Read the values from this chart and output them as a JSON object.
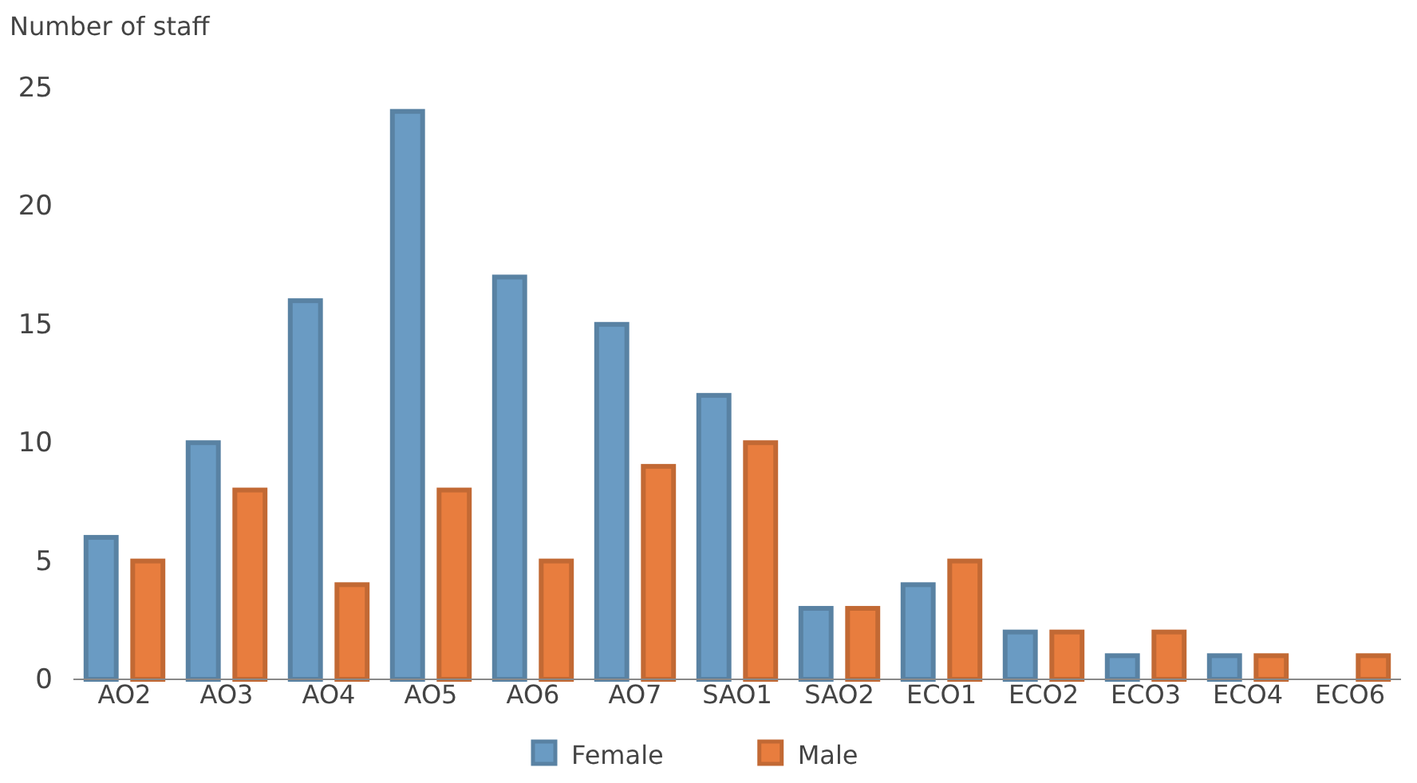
{
  "chart_data": {
    "type": "bar",
    "ylabel": "Number of staff",
    "categories": [
      "AO2",
      "AO3",
      "AO4",
      "AO5",
      "AO6",
      "AO7",
      "SAO1",
      "SAO2",
      "ECO1",
      "ECO2",
      "ECO3",
      "ECO4",
      "ECO6"
    ],
    "series": [
      {
        "name": "Female",
        "color": "#6a9bc3",
        "values": [
          6,
          10,
          16,
          24,
          17,
          15,
          12,
          3,
          4,
          2,
          1,
          1,
          0
        ]
      },
      {
        "name": "Male",
        "color": "#e87d3e",
        "values": [
          5,
          8,
          4,
          8,
          5,
          9,
          10,
          3,
          5,
          2,
          2,
          1,
          1
        ]
      }
    ],
    "ylim": [
      0,
      25
    ],
    "yticks": [
      0,
      5,
      10,
      15,
      20,
      25
    ],
    "grid": false,
    "legend": "bottom"
  }
}
